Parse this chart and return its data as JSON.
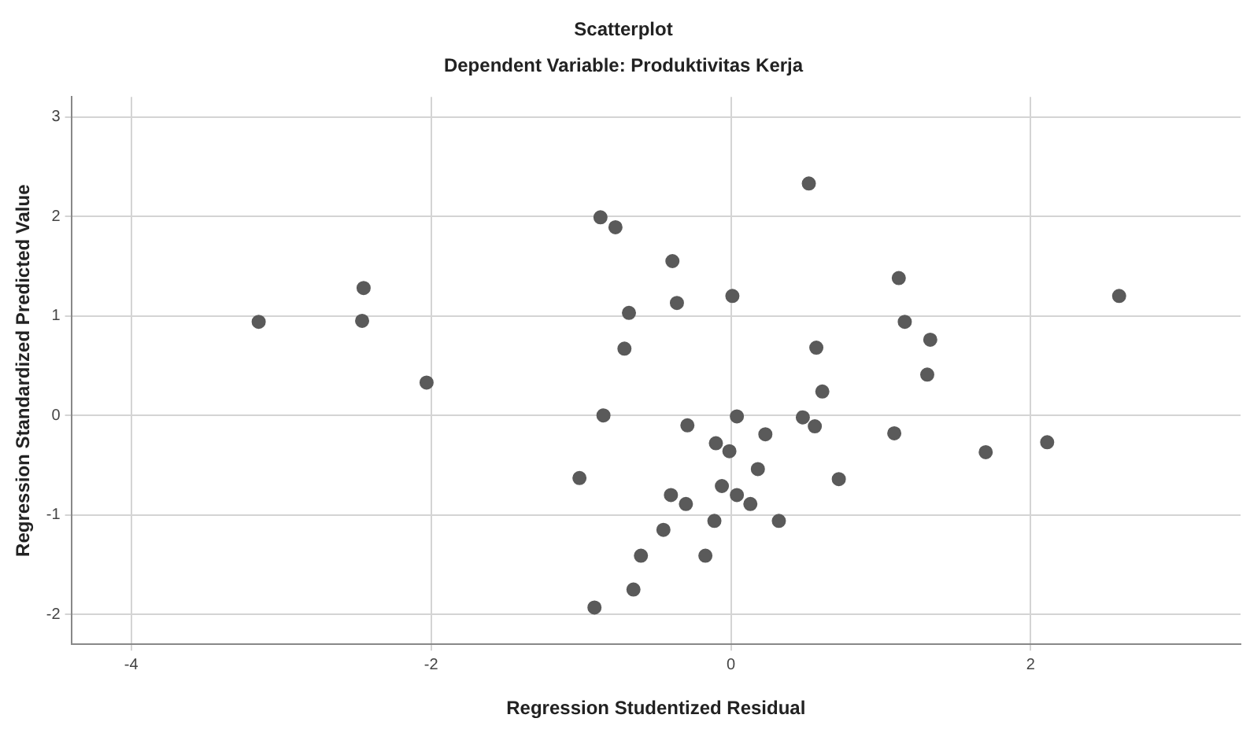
{
  "chart_data": {
    "type": "scatter",
    "title": "Scatterplot",
    "subtitle": "Dependent Variable: Produktivitas Kerja",
    "xlabel": "Regression Studentized Residual",
    "ylabel": "Regression Standardized Predicted Value",
    "x": [
      -3.15,
      -2.45,
      -2.46,
      -2.03,
      -0.87,
      -0.77,
      -0.68,
      -0.71,
      -0.85,
      -1.01,
      -0.6,
      -0.65,
      -0.91,
      0.52,
      -0.39,
      -0.36,
      0.01,
      1.12,
      1.16,
      1.33,
      1.31,
      0.57,
      0.61,
      2.59,
      -0.29,
      0.04,
      0.48,
      0.56,
      0.23,
      1.09,
      -0.1,
      -0.01,
      1.7,
      2.11,
      0.18,
      0.72,
      -0.06,
      -0.4,
      0.04,
      -0.3,
      0.13,
      -0.11,
      0.32,
      -0.45,
      -0.17
    ],
    "series": [
      {
        "color": "#5a5a5a",
        "values": [
          0.94,
          1.28,
          0.95,
          0.33,
          1.99,
          1.89,
          1.03,
          0.67,
          0,
          -0.63,
          -1.41,
          -1.75,
          -1.93,
          2.33,
          1.55,
          1.13,
          1.2,
          1.38,
          0.94,
          0.76,
          0.41,
          0.68,
          0.24,
          1.2,
          -0.1,
          -0.01,
          -0.02,
          -0.11,
          -0.19,
          -0.18,
          -0.28,
          -0.36,
          -0.37,
          -0.27,
          -0.54,
          -0.64,
          -0.71,
          -0.8,
          -0.8,
          -0.89,
          -0.89,
          -1.06,
          -1.06,
          -1.15,
          -1.41
        ]
      }
    ],
    "xlim": [
      -4.4,
      3.4
    ],
    "xticks": [
      -4,
      -2,
      0,
      2
    ],
    "ylim": [
      -2.3,
      3.2
    ],
    "yticks": [
      -2,
      -1,
      0,
      1,
      2,
      3
    ],
    "grid": true,
    "marker": "circle",
    "legend": false
  }
}
